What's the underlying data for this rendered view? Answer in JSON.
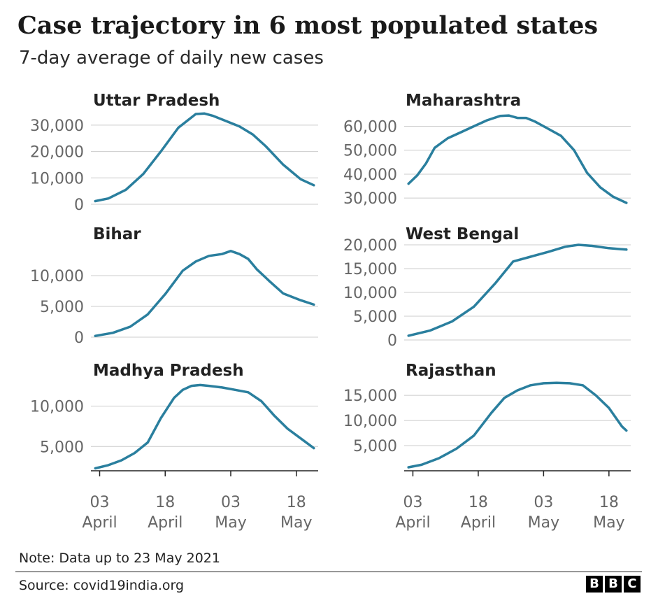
{
  "title": "Case trajectory in 6 most populated states",
  "subtitle": "7-day average of daily new cases",
  "note": "Note: Data up to 23 May 2021",
  "source": "Source: covid19india.org",
  "logo": [
    "B",
    "B",
    "C"
  ],
  "colors": {
    "line": "#2a7f9e",
    "grid": "#cccccc",
    "axis": "#222222",
    "tick_label": "#666666",
    "panel_title": "#222222"
  },
  "x_axis": {
    "ticks": [
      {
        "day": 2,
        "line1": "03",
        "line2": "April"
      },
      {
        "day": 17,
        "line1": "18",
        "line2": "April"
      },
      {
        "day": 32,
        "line1": "03",
        "line2": "May"
      },
      {
        "day": 47,
        "line1": "18",
        "line2": "May"
      }
    ]
  },
  "chart_data": [
    {
      "type": "line",
      "title": "Uttar Pradesh",
      "x": [
        1,
        4,
        8,
        12,
        16,
        20,
        24,
        26,
        28,
        31,
        34,
        37,
        40,
        44,
        48,
        51
      ],
      "values": [
        1200,
        2200,
        5500,
        11500,
        20000,
        29000,
        34200,
        34400,
        33500,
        31500,
        29500,
        26500,
        22000,
        15000,
        9500,
        7200
      ],
      "ylim": [
        0,
        35000
      ],
      "yticks": [
        0,
        10000,
        20000,
        30000
      ],
      "ytick_labels": [
        "0",
        "10,000",
        "20,000",
        "30,000"
      ]
    },
    {
      "type": "line",
      "title": "Maharashtra",
      "x": [
        1,
        3,
        5,
        7,
        10,
        13,
        16,
        19,
        22,
        24,
        26,
        28,
        30,
        33,
        36,
        39,
        42,
        45,
        48,
        51
      ],
      "values": [
        36000,
        39500,
        44500,
        51000,
        55000,
        57500,
        60000,
        62500,
        64300,
        64500,
        63500,
        63500,
        62000,
        59000,
        56000,
        50000,
        40500,
        34500,
        30500,
        28000
      ],
      "ylim": [
        28000,
        66000
      ],
      "yticks": [
        30000,
        40000,
        50000,
        60000
      ],
      "ytick_labels": [
        "30,000",
        "40,000",
        "50,000",
        "60,000"
      ]
    },
    {
      "type": "line",
      "title": "Bihar",
      "x": [
        1,
        5,
        9,
        13,
        17,
        21,
        24,
        27,
        30,
        32,
        34,
        36,
        38,
        41,
        44,
        48,
        51
      ],
      "values": [
        200,
        700,
        1700,
        3700,
        7000,
        10800,
        12300,
        13200,
        13500,
        14000,
        13500,
        12700,
        11000,
        9000,
        7100,
        6000,
        5300
      ],
      "ylim": [
        0,
        15000
      ],
      "yticks": [
        0,
        5000,
        10000
      ],
      "ytick_labels": [
        "0",
        "5,000",
        "10,000"
      ]
    },
    {
      "type": "line",
      "title": "West Bengal",
      "x": [
        1,
        6,
        11,
        16,
        21,
        25,
        29,
        33,
        37,
        40,
        43,
        47,
        51
      ],
      "values": [
        900,
        2000,
        3900,
        7000,
        12000,
        16500,
        17500,
        18500,
        19600,
        20000,
        19800,
        19300,
        19000
      ],
      "ylim": [
        0,
        20000
      ],
      "yticks": [
        0,
        5000,
        10000,
        15000,
        20000
      ],
      "ytick_labels": [
        "0",
        "5,000",
        "10,000",
        "15,000",
        "20,000"
      ]
    },
    {
      "type": "line",
      "title": "Madhya Pradesh",
      "x": [
        1,
        4,
        7,
        10,
        13,
        16,
        19,
        21,
        23,
        25,
        27,
        30,
        33,
        36,
        39,
        42,
        45,
        48,
        51
      ],
      "values": [
        2300,
        2700,
        3300,
        4200,
        5500,
        8500,
        11000,
        12000,
        12500,
        12600,
        12500,
        12300,
        12000,
        11700,
        10600,
        8800,
        7200,
        6000,
        4800
      ],
      "ylim": [
        2000,
        13500
      ],
      "yticks": [
        5000,
        10000
      ],
      "ytick_labels": [
        "5,000",
        "10,000"
      ]
    },
    {
      "type": "line",
      "title": "Rajasthan",
      "x": [
        1,
        4,
        8,
        12,
        16,
        20,
        23,
        26,
        29,
        32,
        35,
        38,
        41,
        44,
        47,
        50,
        51
      ],
      "values": [
        700,
        1200,
        2500,
        4400,
        7000,
        11500,
        14500,
        16000,
        17000,
        17400,
        17500,
        17400,
        17000,
        15000,
        12500,
        8800,
        8000
      ],
      "ylim": [
        0,
        18500
      ],
      "yticks": [
        5000,
        10000,
        15000
      ],
      "ytick_labels": [
        "5,000",
        "10,000",
        "15,000"
      ]
    }
  ]
}
